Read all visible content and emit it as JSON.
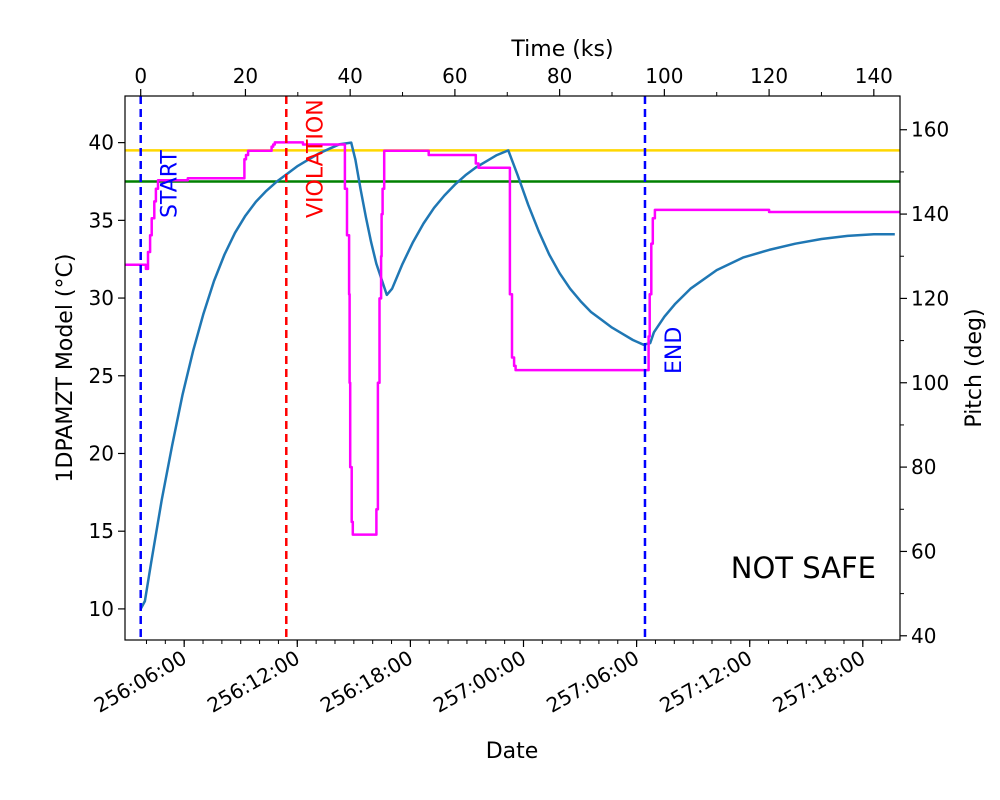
{
  "chart_data": {
    "type": "line",
    "xlabel": "Date",
    "x2label": "Time (ks)",
    "ylabel": "1DPAMZT Model ($^\\circ$C)",
    "ylabel_display": "1DPAMZT Model (°C)",
    "y2label": "Pitch (deg)",
    "xlim_ks": [
      -3,
      145
    ],
    "ylim": [
      8,
      43
    ],
    "y2lim": [
      39,
      168
    ],
    "x2_ticks": [
      0,
      20,
      40,
      60,
      80,
      100,
      120,
      140
    ],
    "x2_tick_labels": [
      "0",
      "20",
      "40",
      "60",
      "80",
      "100",
      "120",
      "140"
    ],
    "y_ticks": [
      10,
      15,
      20,
      25,
      30,
      35,
      40
    ],
    "y_tick_labels": [
      "10",
      "15",
      "20",
      "25",
      "30",
      "35",
      "40"
    ],
    "y2_ticks": [
      40,
      60,
      80,
      100,
      120,
      140,
      160
    ],
    "y2_tick_labels": [
      "40",
      "60",
      "80",
      "100",
      "120",
      "140",
      "160"
    ],
    "date_ticks_ks": [
      8.3,
      29.9,
      51.5,
      73.1,
      94.7,
      116.3,
      137.9
    ],
    "date_tick_labels": [
      "256:06:00",
      "256:12:00",
      "256:18:00",
      "257:00:00",
      "257:06:00",
      "257:12:00",
      "257:18:00"
    ],
    "thresholds": [
      {
        "value": 39.5,
        "color": "#ffd700"
      },
      {
        "value": 37.5,
        "color": "#008000"
      }
    ],
    "vlines": [
      {
        "x": 0,
        "label": "START",
        "color": "#0000ff"
      },
      {
        "x": 27.8,
        "label": "VIOLATION",
        "color": "#ff0000"
      },
      {
        "x": 96.3,
        "label": "END",
        "color": "#0000ff"
      }
    ],
    "annotation": "NOT SAFE",
    "series": [
      {
        "axis": "left",
        "color": "#1f77b4",
        "x": [
          0,
          0.8,
          2,
          4,
          6,
          8,
          10,
          12,
          14,
          16,
          18,
          20,
          22,
          24,
          26,
          28,
          30,
          32,
          34,
          36,
          38,
          40.2,
          41,
          42,
          43,
          44,
          45,
          46,
          47,
          48,
          50,
          52,
          54,
          56,
          58,
          60,
          62,
          64,
          66,
          68,
          70.2,
          72,
          74,
          76,
          78,
          80,
          82,
          84,
          86,
          88,
          90,
          92,
          94,
          96,
          97.3,
          98,
          100,
          102,
          105,
          110,
          115,
          120,
          125,
          130,
          135,
          140,
          144
        ],
        "y": [
          10.0,
          10.5,
          13.0,
          17.0,
          20.5,
          23.8,
          26.6,
          29.0,
          31.1,
          32.8,
          34.2,
          35.3,
          36.2,
          36.9,
          37.5,
          38.0,
          38.5,
          38.9,
          39.3,
          39.6,
          39.9,
          40.0,
          38.9,
          37.0,
          35.2,
          33.6,
          32.2,
          31.2,
          30.2,
          30.6,
          32.2,
          33.6,
          34.8,
          35.8,
          36.6,
          37.3,
          37.9,
          38.4,
          38.8,
          39.2,
          39.5,
          37.9,
          36.0,
          34.3,
          32.8,
          31.6,
          30.6,
          29.8,
          29.1,
          28.6,
          28.1,
          27.7,
          27.3,
          27.0,
          27.1,
          27.8,
          28.8,
          29.6,
          30.6,
          31.8,
          32.6,
          33.1,
          33.5,
          33.8,
          34.0,
          34.1,
          34.1
        ]
      },
      {
        "axis": "right",
        "color": "#ff00ff",
        "x": [
          -3,
          1.0,
          1.0,
          1.4,
          1.4,
          1.8,
          1.8,
          2.1,
          2.1,
          2.6,
          2.6,
          2.9,
          2.9,
          3.3,
          3.3,
          9,
          9,
          19.8,
          19.8,
          20.1,
          20.1,
          20.5,
          20.5,
          25,
          25,
          25.3,
          25.3,
          25.6,
          25.6,
          31,
          31,
          39,
          39,
          39.4,
          39.4,
          39.8,
          39.8,
          39.9,
          39.9,
          40.0,
          40.0,
          40.3,
          40.3,
          40.5,
          40.5,
          41,
          41,
          45,
          45,
          45.3,
          45.3,
          45.6,
          45.6,
          45.9,
          45.9,
          46.0,
          46.0,
          46.2,
          46.2,
          46.5,
          46.5,
          47,
          47,
          55,
          55,
          64,
          64,
          64.5,
          64.5,
          70.5,
          70.5,
          70.9,
          70.9,
          71.3,
          71.3,
          71.6,
          71.6,
          71.9,
          71.9,
          97,
          97,
          97.2,
          97.2,
          97.5,
          97.5,
          97.8,
          97.8,
          98.2,
          98.2,
          105,
          105,
          120,
          120,
          145
        ],
        "y": [
          128,
          128,
          127,
          127,
          131,
          131,
          135,
          135,
          139,
          139,
          143,
          143,
          146,
          146,
          148,
          148,
          148.5,
          148.5,
          153,
          153,
          154,
          154,
          155,
          155,
          156,
          156,
          156.5,
          156.5,
          157,
          157,
          156.5,
          156.5,
          146,
          146,
          135,
          135,
          121,
          121,
          100,
          100,
          80,
          80,
          67,
          67,
          64,
          64,
          64,
          64,
          70,
          70,
          100,
          100,
          120,
          120,
          130,
          130,
          140,
          140,
          146,
          146,
          155,
          155,
          155,
          155,
          154,
          154,
          152,
          152,
          151,
          151,
          121,
          121,
          106,
          106,
          104,
          104,
          103,
          103,
          103,
          103,
          111,
          111,
          121,
          121,
          133,
          133,
          139,
          139,
          141,
          141,
          141,
          141,
          140.5,
          140.5
        ]
      }
    ]
  }
}
